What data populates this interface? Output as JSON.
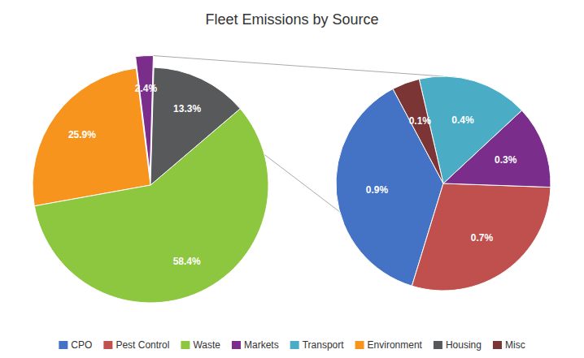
{
  "chart_data": [
    {
      "type": "pie",
      "title": "Fleet Emissions by Source",
      "categories": [
        "Environment",
        "Waste",
        "Housing",
        "Markets"
      ],
      "values": [
        25.9,
        58.4,
        13.3,
        2.4
      ],
      "value_labels": [
        "25.9%",
        "58.4%",
        "13.3%",
        "2.4%"
      ],
      "data_labels": true
    },
    {
      "type": "pie",
      "categories": [
        "CPO",
        "Pest Control",
        "Markets",
        "Transport",
        "Misc"
      ],
      "values": [
        0.9,
        0.7,
        0.3,
        0.4,
        0.1
      ],
      "value_labels": [
        "0.9%",
        "0.7%",
        "0.3%",
        "0.4%",
        "0.1%"
      ],
      "data_labels": true
    },
    {
      "type": "legend",
      "legend": "bottom",
      "series": [
        {
          "name": "CPO",
          "color": "#4472C4"
        },
        {
          "name": "Pest Control",
          "color": "#C0504D"
        },
        {
          "name": "Waste",
          "color": "#8DC63F"
        },
        {
          "name": "Markets",
          "color": "#7B2D8B"
        },
        {
          "name": "Transport",
          "color": "#4BACC6"
        },
        {
          "name": "Environment",
          "color": "#F7941D"
        },
        {
          "name": "Housing",
          "color": "#58595B"
        },
        {
          "name": "Misc",
          "color": "#7B3535"
        }
      ]
    }
  ]
}
